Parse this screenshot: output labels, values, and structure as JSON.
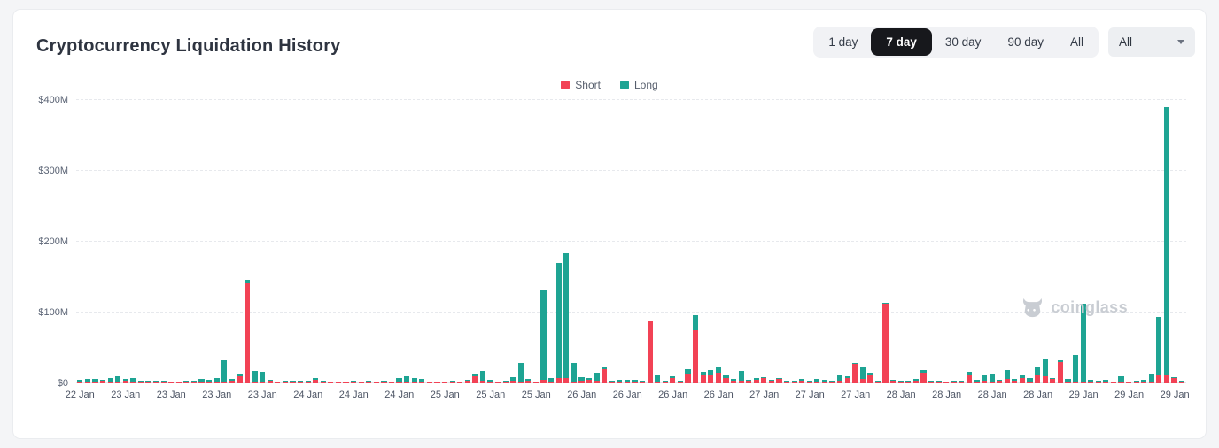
{
  "header": {
    "title": "Cryptocurrency Liquidation History",
    "range_buttons": [
      "1 day",
      "7 day",
      "30 day",
      "90 day",
      "All"
    ],
    "active_range": "7 day",
    "symbol_filter": {
      "value": "All"
    }
  },
  "legend": [
    {
      "label": "Short",
      "color": "#f24255"
    },
    {
      "label": "Long",
      "color": "#1ea493"
    }
  ],
  "watermark": "coinglass",
  "chart_data": {
    "type": "bar",
    "stacked": true,
    "title": "Cryptocurrency Liquidation History",
    "unit": "USD millions",
    "ylim": [
      0,
      400
    ],
    "y_tick_step": 100,
    "y_tick_labels": [
      "$0",
      "$100M",
      "$200M",
      "$300M",
      "$400M"
    ],
    "grid": "dashed-horizontal",
    "legend_position": "top-center",
    "x_tick_every": 6,
    "x_tick_labels": [
      "22 Jan",
      "23 Jan",
      "23 Jan",
      "23 Jan",
      "23 Jan",
      "24 Jan",
      "24 Jan",
      "24 Jan",
      "25 Jan",
      "25 Jan",
      "25 Jan",
      "26 Jan",
      "26 Jan",
      "26 Jan",
      "26 Jan",
      "27 Jan",
      "27 Jan",
      "27 Jan",
      "28 Jan",
      "28 Jan",
      "28 Jan",
      "28 Jan",
      "29 Jan",
      "29 Jan",
      "29 Jan"
    ],
    "series": [
      {
        "name": "Short",
        "color": "#f24255",
        "values": [
          3,
          3,
          2,
          4,
          2,
          3,
          4,
          3,
          2,
          1,
          2,
          3,
          1,
          1,
          2,
          2,
          1,
          2,
          2,
          2,
          4,
          10,
          141,
          3,
          2,
          4,
          1,
          2,
          2,
          1,
          1,
          5,
          2,
          1,
          1,
          1,
          1,
          1,
          1,
          1,
          2,
          1,
          1,
          2,
          2,
          3,
          1,
          1,
          1,
          2,
          1,
          4,
          10,
          4,
          1,
          1,
          1,
          4,
          2,
          4,
          1,
          5,
          2,
          7,
          7,
          2,
          4,
          5,
          4,
          20,
          2,
          3,
          2,
          3,
          2,
          87,
          3,
          2,
          8,
          2,
          14,
          75,
          12,
          11,
          15,
          8,
          4,
          4,
          4,
          5,
          8,
          4,
          6,
          2,
          2,
          4,
          2,
          3,
          2,
          2,
          4,
          8,
          27,
          6,
          13,
          2,
          112,
          4,
          2,
          3,
          4,
          15,
          2,
          2,
          1,
          2,
          2,
          13,
          2,
          4,
          3,
          4,
          6,
          4,
          8,
          2,
          12,
          10,
          6,
          30,
          2,
          3,
          3,
          2,
          1,
          2,
          1,
          2,
          1,
          1,
          2,
          2,
          13,
          13,
          7,
          2
        ]
      },
      {
        "name": "Long",
        "color": "#1ea493",
        "values": [
          2,
          3,
          4,
          1,
          6,
          7,
          2,
          4,
          1,
          2,
          1,
          1,
          1,
          1,
          1,
          1,
          5,
          3,
          6,
          30,
          2,
          4,
          5,
          14,
          14,
          1,
          1,
          1,
          1,
          3,
          2,
          3,
          1,
          1,
          1,
          1,
          2,
          1,
          2,
          1,
          1,
          1,
          6,
          8,
          6,
          3,
          1,
          1,
          1,
          1,
          1,
          1,
          4,
          13,
          4,
          1,
          3,
          5,
          27,
          2,
          1,
          127,
          6,
          163,
          177,
          27,
          5,
          3,
          11,
          4,
          2,
          2,
          3,
          2,
          1,
          2,
          8,
          2,
          2,
          2,
          6,
          21,
          4,
          8,
          8,
          4,
          2,
          13,
          1,
          3,
          1,
          1,
          2,
          2,
          2,
          2,
          2,
          3,
          3,
          2,
          9,
          2,
          2,
          18,
          2,
          2,
          2,
          1,
          1,
          1,
          2,
          4,
          2,
          1,
          1,
          1,
          2,
          3,
          3,
          8,
          11,
          1,
          13,
          2,
          3,
          6,
          12,
          25,
          2,
          2,
          4,
          37,
          109,
          3,
          2,
          3,
          1,
          8,
          1,
          2,
          3,
          12,
          81,
          377,
          1,
          1
        ]
      }
    ]
  }
}
